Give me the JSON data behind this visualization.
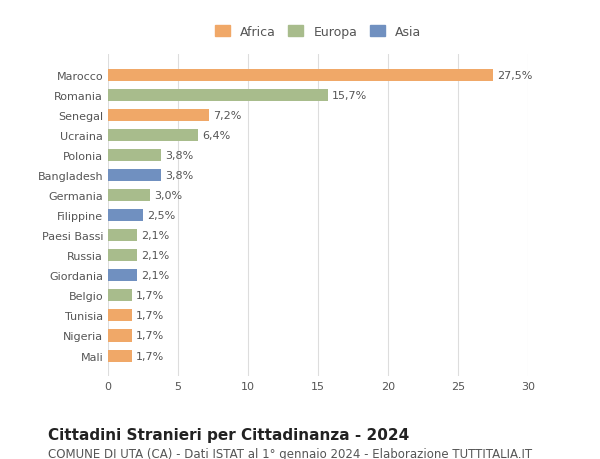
{
  "categories": [
    "Marocco",
    "Romania",
    "Senegal",
    "Ucraina",
    "Polonia",
    "Bangladesh",
    "Germania",
    "Filippine",
    "Paesi Bassi",
    "Russia",
    "Giordania",
    "Belgio",
    "Tunisia",
    "Nigeria",
    "Mali"
  ],
  "values": [
    27.5,
    15.7,
    7.2,
    6.4,
    3.8,
    3.8,
    3.0,
    2.5,
    2.1,
    2.1,
    2.1,
    1.7,
    1.7,
    1.7,
    1.7
  ],
  "labels": [
    "27,5%",
    "15,7%",
    "7,2%",
    "6,4%",
    "3,8%",
    "3,8%",
    "3,0%",
    "2,5%",
    "2,1%",
    "2,1%",
    "2,1%",
    "1,7%",
    "1,7%",
    "1,7%",
    "1,7%"
  ],
  "continents": [
    "Africa",
    "Europa",
    "Africa",
    "Europa",
    "Europa",
    "Asia",
    "Europa",
    "Asia",
    "Europa",
    "Europa",
    "Asia",
    "Europa",
    "Africa",
    "Africa",
    "Africa"
  ],
  "colors": {
    "Africa": "#f0a868",
    "Europa": "#a8bc8c",
    "Asia": "#7090c0"
  },
  "legend_colors": {
    "Africa": "#f0a868",
    "Europa": "#a8bc8c",
    "Asia": "#7090c0"
  },
  "xlim": [
    0,
    30
  ],
  "xticks": [
    0,
    5,
    10,
    15,
    20,
    25,
    30
  ],
  "title": "Cittadini Stranieri per Cittadinanza - 2024",
  "subtitle": "COMUNE DI UTA (CA) - Dati ISTAT al 1° gennaio 2024 - Elaborazione TUTTITALIA.IT",
  "background_color": "#ffffff",
  "grid_color": "#dddddd",
  "bar_height": 0.6,
  "title_fontsize": 11,
  "subtitle_fontsize": 8.5,
  "label_fontsize": 8,
  "tick_fontsize": 8,
  "legend_fontsize": 9
}
